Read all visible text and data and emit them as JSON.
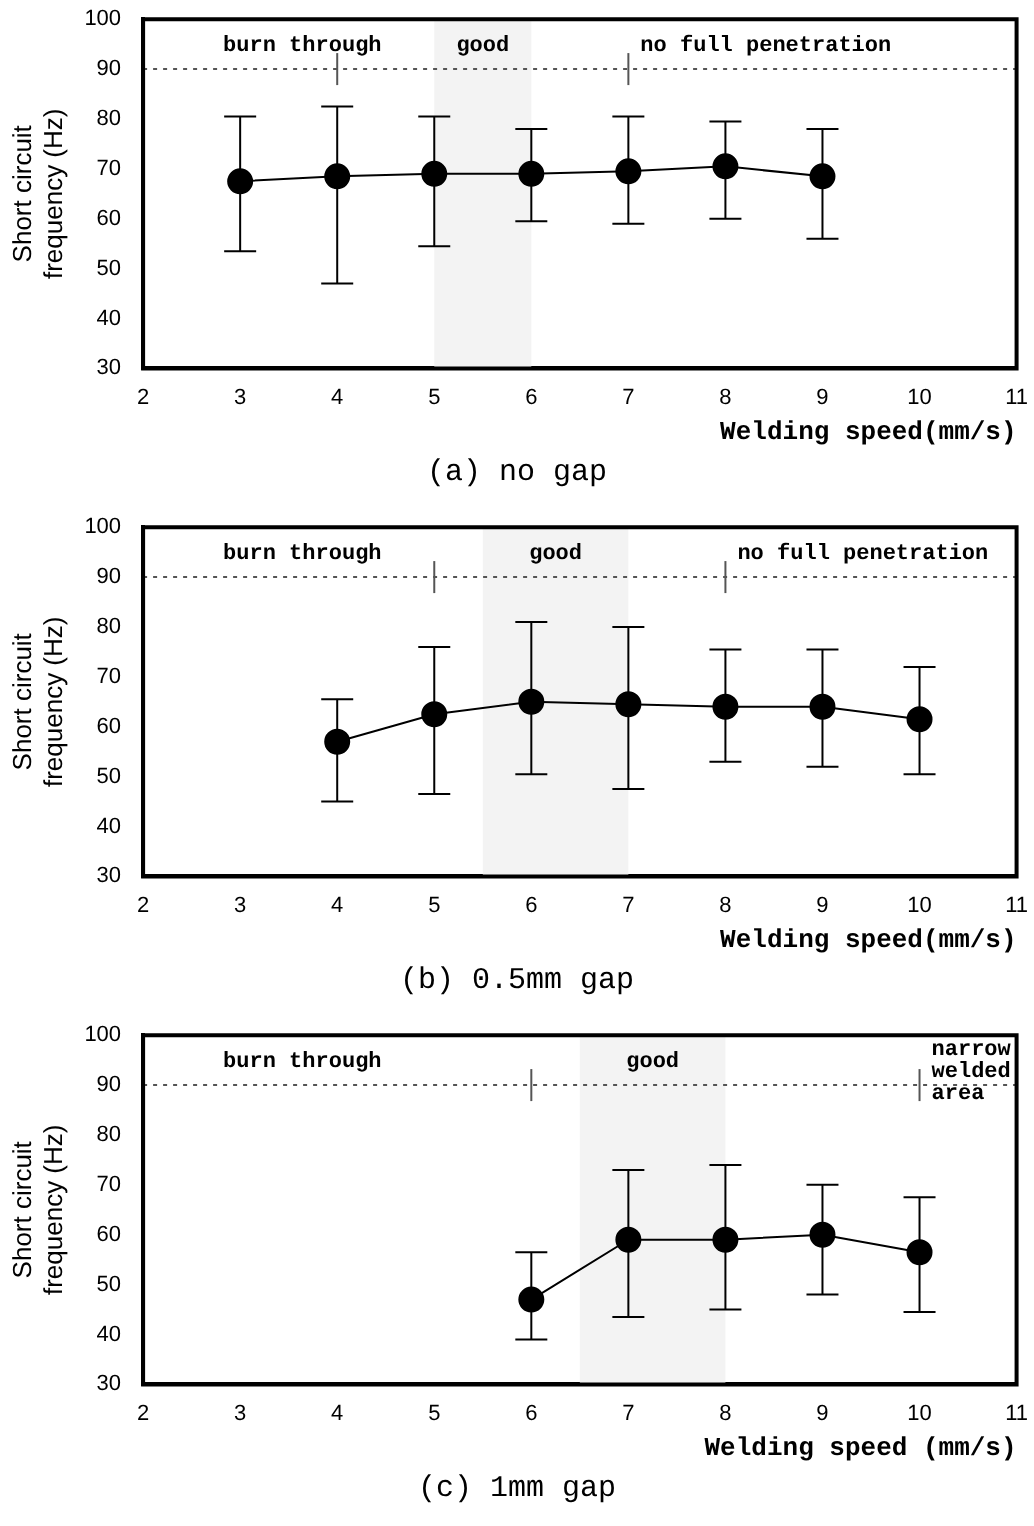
{
  "chart_data": [
    {
      "type": "line",
      "title": "(a) no gap",
      "xlabel": "Welding speed(mm/s)",
      "ylabel": "Short circuit\nfrequency (Hz)",
      "x": [
        3,
        4,
        5,
        6,
        7,
        8,
        9
      ],
      "values": [
        67.5,
        68.5,
        69,
        69,
        69.5,
        70.5,
        68.5
      ],
      "errors": [
        [
          53.5,
          80.5
        ],
        [
          47,
          82.5
        ],
        [
          54.5,
          80.5
        ],
        [
          59.5,
          78
        ],
        [
          59,
          80.5
        ],
        [
          60,
          79.5
        ],
        [
          56,
          78
        ]
      ],
      "color": "#000000",
      "marker": "circle",
      "xlim": [
        2,
        11
      ],
      "xticks": [
        2,
        3,
        4,
        5,
        6,
        7,
        8,
        9,
        10,
        11
      ],
      "ylim": [
        30,
        100
      ],
      "yticks": [
        30,
        40,
        50,
        60,
        70,
        80,
        90,
        100
      ],
      "grid": false,
      "legend": false,
      "ref_lines": [
        {
          "axis": "y",
          "value": 90,
          "line_style": "dotted",
          "label": "burn through"
        },
        {
          "axis": "x",
          "value": 4
        },
        {
          "axis": "x",
          "value": 7,
          "label": "no full penetration"
        }
      ],
      "bands": [
        {
          "axis": "x",
          "from": 5,
          "to": 6,
          "label": "good"
        }
      ]
    },
    {
      "type": "line",
      "title": "(b) 0.5mm gap",
      "xlabel": "Welding speed(mm/s)",
      "ylabel": "Short circuit\nfrequency (Hz)",
      "x": [
        4,
        5,
        6,
        7,
        8,
        9,
        10
      ],
      "values": [
        57,
        62.5,
        65,
        64.5,
        64,
        64,
        61.5
      ],
      "errors": [
        [
          45,
          65.5
        ],
        [
          46.5,
          76
        ],
        [
          50.5,
          81
        ],
        [
          47.5,
          80
        ],
        [
          53,
          75.5
        ],
        [
          52,
          75.5
        ],
        [
          50.5,
          72
        ]
      ],
      "color": "#000000",
      "marker": "circle",
      "xlim": [
        2,
        11
      ],
      "xticks": [
        2,
        3,
        4,
        5,
        6,
        7,
        8,
        9,
        10,
        11
      ],
      "ylim": [
        30,
        100
      ],
      "yticks": [
        30,
        40,
        50,
        60,
        70,
        80,
        90,
        100
      ],
      "grid": false,
      "legend": false,
      "ref_lines": [
        {
          "axis": "y",
          "value": 90,
          "line_style": "dotted",
          "label": "burn through"
        },
        {
          "axis": "x",
          "value": 5
        },
        {
          "axis": "x",
          "value": 8,
          "label": "no full penetration"
        }
      ],
      "bands": [
        {
          "axis": "x",
          "from": 5.5,
          "to": 7,
          "label": "good"
        }
      ]
    },
    {
      "type": "line",
      "title": "(c) 1mm gap",
      "xlabel": "Welding speed (mm/s)",
      "ylabel": "Short circuit\nfrequency (Hz)",
      "x": [
        6,
        7,
        8,
        9,
        10
      ],
      "values": [
        47,
        59,
        59,
        60,
        56.5
      ],
      "errors": [
        [
          39,
          56.5
        ],
        [
          43.5,
          73
        ],
        [
          45,
          74
        ],
        [
          48,
          70
        ],
        [
          44.5,
          67.5
        ]
      ],
      "color": "#000000",
      "marker": "circle",
      "xlim": [
        2,
        11
      ],
      "xticks": [
        2,
        3,
        4,
        5,
        6,
        7,
        8,
        9,
        10,
        11
      ],
      "ylim": [
        30,
        100
      ],
      "yticks": [
        30,
        40,
        50,
        60,
        70,
        80,
        90,
        100
      ],
      "grid": false,
      "legend": false,
      "ref_lines": [
        {
          "axis": "y",
          "value": 90,
          "line_style": "dotted",
          "label": "burn through"
        },
        {
          "axis": "x",
          "value": 6
        },
        {
          "axis": "x",
          "value": 10,
          "label": "narrow\nwelded\narea"
        }
      ],
      "bands": [
        {
          "axis": "x",
          "from": 6.5,
          "to": 8,
          "label": "good"
        }
      ]
    }
  ]
}
